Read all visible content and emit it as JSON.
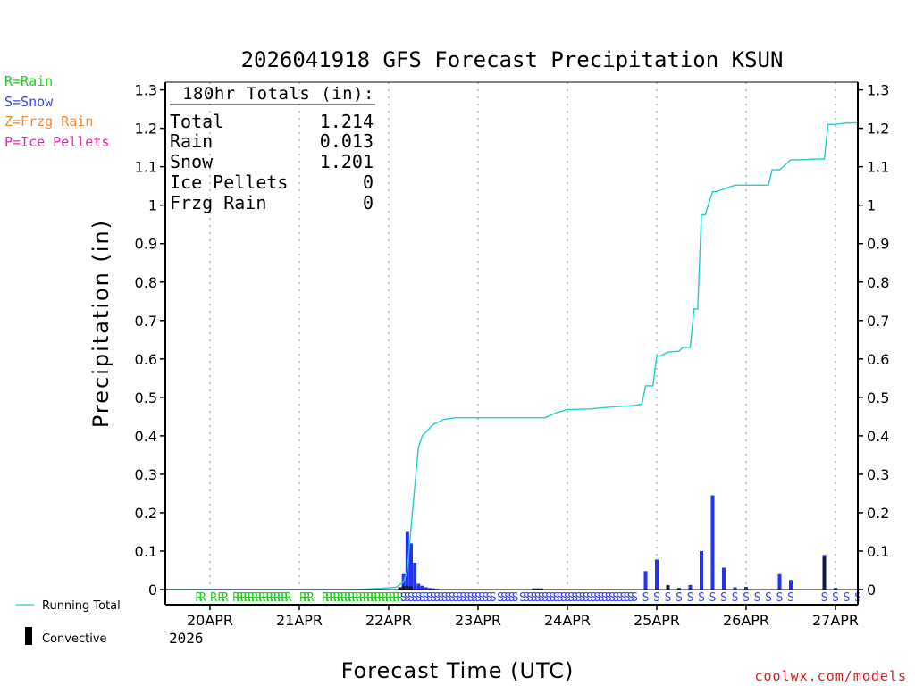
{
  "chart_data": {
    "type": "bar",
    "title": "2026041918 GFS Forecast Precipitation KSUN",
    "xlabel": "Forecast Time (UTC)",
    "ylabel": "Precipitation (in)",
    "ylim": [
      0,
      1.32
    ],
    "yticks": [
      0,
      0.1,
      0.2,
      0.3,
      0.4,
      0.5,
      0.6,
      0.7,
      0.8,
      0.9,
      1,
      1.1,
      1.2,
      1.3
    ],
    "xlim_hours": [
      -6,
      180
    ],
    "x_start_label": "2026041918",
    "xtick_hours": [
      6,
      30,
      54,
      78,
      102,
      126,
      150,
      174
    ],
    "xtick_labels": [
      "20APR",
      "21APR",
      "22APR",
      "23APR",
      "24APR",
      "25APR",
      "26APR",
      "27APR"
    ],
    "xtick_sublabel": "2026",
    "legend": {
      "types": [
        {
          "text": "R=Rain",
          "color": "#22cc22"
        },
        {
          "text": "S=Snow",
          "color": "#3344ee"
        },
        {
          "text": "Z=Frzg Rain",
          "color": "#ee8833"
        },
        {
          "text": "P=Ice Pellets",
          "color": "#ee22aa"
        }
      ],
      "running_total": "Running Total",
      "convective": "Convective"
    },
    "totals": {
      "header": "180hr Totals (in):",
      "rows": [
        {
          "label": "Total",
          "value": "1.214"
        },
        {
          "label": "Rain",
          "value": "0.013"
        },
        {
          "label": "Snow",
          "value": "1.201"
        },
        {
          "label": "Ice Pellets",
          "value": "0"
        },
        {
          "label": "Frzg Rain",
          "value": "0"
        }
      ]
    },
    "series": [
      {
        "name": "Running Total",
        "color": "#22cccc",
        "x": [
          -6,
          45,
          52,
          56,
          58,
          59,
          60,
          61,
          62,
          63,
          64,
          66,
          69,
          72,
          78,
          84,
          90,
          96,
          99,
          102,
          108,
          114,
          120,
          122,
          123,
          125,
          126,
          127,
          129,
          132,
          133,
          135,
          136,
          137,
          138,
          139,
          141,
          142,
          144,
          147,
          150,
          153,
          156,
          157,
          159,
          162,
          165,
          168,
          171,
          172,
          174,
          177,
          180
        ],
        "values": [
          0,
          0,
          0.003,
          0.006,
          0.02,
          0.05,
          0.16,
          0.27,
          0.37,
          0.4,
          0.41,
          0.43,
          0.443,
          0.447,
          0.447,
          0.447,
          0.447,
          0.447,
          0.46,
          0.468,
          0.47,
          0.475,
          0.479,
          0.482,
          0.53,
          0.53,
          0.608,
          0.608,
          0.618,
          0.62,
          0.63,
          0.63,
          0.73,
          0.73,
          0.975,
          0.975,
          1.035,
          1.035,
          1.042,
          1.052,
          1.052,
          1.052,
          1.052,
          1.092,
          1.092,
          1.118,
          1.118,
          1.12,
          1.12,
          1.21,
          1.21,
          1.214,
          1.214
        ]
      },
      {
        "name": "Snow",
        "color": "#2233ee",
        "x": [
          58,
          59,
          60,
          61,
          62,
          63,
          64,
          65,
          66,
          67,
          123,
          126,
          129,
          135,
          138,
          141,
          144,
          147,
          150,
          159,
          162,
          171
        ],
        "values": [
          0.04,
          0.15,
          0.12,
          0.07,
          0.015,
          0.01,
          0.006,
          0.004,
          0.003,
          0.002,
          0.048,
          0.078,
          0.012,
          0.012,
          0.1,
          0.245,
          0.057,
          0.006,
          0.007,
          0.04,
          0.025,
          0.09
        ]
      },
      {
        "name": "Convective",
        "color": "#0a1a40",
        "x": [
          57,
          58,
          59,
          60,
          93,
          94,
          95,
          129,
          132,
          171,
          174
        ],
        "values": [
          0.006,
          0.01,
          0.01,
          0.008,
          0.003,
          0.003,
          0.003,
          0.01,
          0.004,
          0.085,
          0.004
        ]
      }
    ],
    "ptype_row": {
      "R": {
        "color": "#22cc22",
        "hours": [
          3,
          4,
          7,
          9,
          10,
          13,
          14,
          15,
          16,
          17,
          18,
          19,
          20,
          21,
          22,
          23,
          24,
          25,
          26,
          27,
          31,
          32,
          33,
          37,
          38,
          39,
          40,
          41,
          42,
          43,
          44,
          45,
          46,
          47,
          48,
          49,
          50,
          51,
          52,
          53,
          54,
          55,
          56,
          57
        ]
      },
      "S": {
        "color": "#3344ee",
        "hours": [
          58,
          59,
          60,
          61,
          62,
          63,
          64,
          65,
          66,
          67,
          68,
          69,
          70,
          71,
          72,
          73,
          74,
          75,
          76,
          77,
          78,
          79,
          80,
          81,
          82,
          84,
          85,
          86,
          87,
          88,
          90,
          91,
          92,
          93,
          94,
          95,
          96,
          97,
          98,
          99,
          100,
          101,
          102,
          103,
          104,
          105,
          106,
          107,
          108,
          109,
          110,
          111,
          112,
          113,
          114,
          115,
          116,
          117,
          118,
          119,
          120,
          123,
          126,
          129,
          132,
          135,
          138,
          141,
          144,
          147,
          150,
          153,
          156,
          159,
          162,
          171,
          174,
          177,
          180
        ]
      }
    },
    "footer": "coolwx.com/models"
  }
}
